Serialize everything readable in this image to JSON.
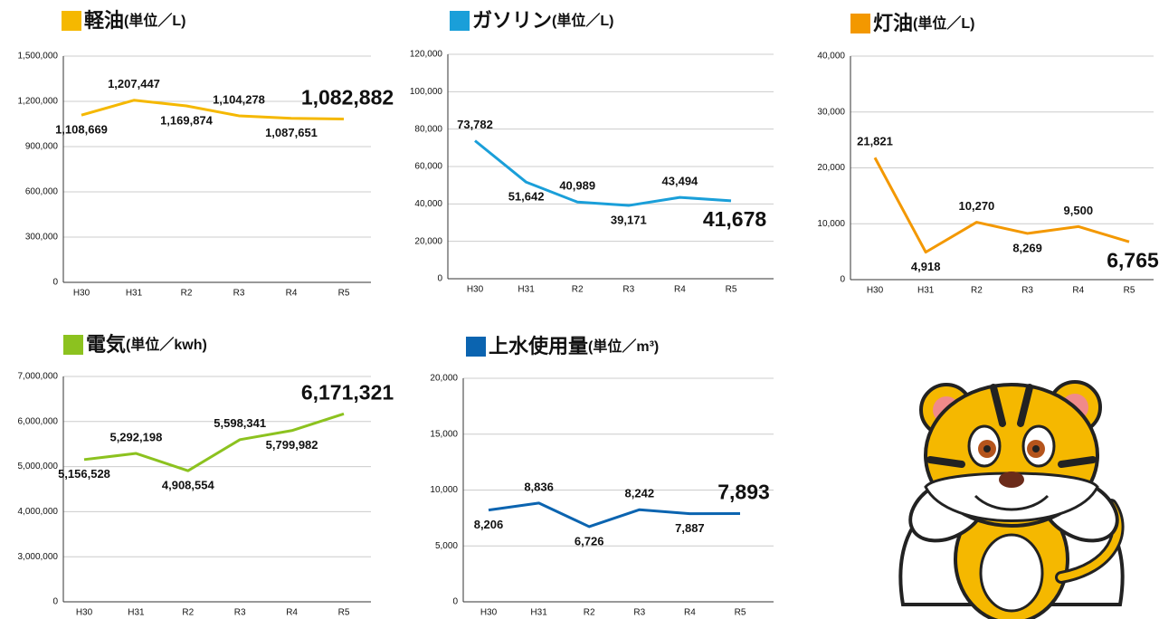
{
  "chart_data": [
    {
      "type": "line",
      "title": "軽油",
      "unit": "(単位／L)",
      "color": "#f5b800",
      "categories": [
        "H30",
        "H31",
        "R2",
        "R3",
        "R4",
        "R5"
      ],
      "values": [
        1108669,
        1207447,
        1169874,
        1104278,
        1087651,
        1082882
      ],
      "value_labels": [
        "1,108,669",
        "1,207,447",
        "1,169,874",
        "1,104,278",
        "1,087,651",
        "1,082,882"
      ],
      "ylim": [
        0,
        1500000
      ],
      "yticks": [
        0,
        {
          "value": 300000,
          "label": "300,000"
        },
        {
          "value": 600000,
          "label": "600,000"
        },
        {
          "value": 900000,
          "label": "900,000"
        },
        {
          "value": 1200000,
          "label": "1,200,000"
        },
        {
          "value": 1500000,
          "label": "1,500,000"
        }
      ],
      "grid": true
    },
    {
      "type": "line",
      "title": "ガソリン",
      "unit": "(単位／L)",
      "color": "#1a9fd9",
      "categories": [
        "H30",
        "H31",
        "R2",
        "R3",
        "R4",
        "R5"
      ],
      "values": [
        73782,
        51642,
        40989,
        39171,
        43494,
        41678
      ],
      "value_labels": [
        "73,782",
        "51,642",
        "40,989",
        "39,171",
        "43,494",
        "41,678"
      ],
      "ylim": [
        0,
        120000
      ],
      "yticks": [
        0,
        {
          "value": 20000,
          "label": "20,000"
        },
        {
          "value": 40000,
          "label": "40,000"
        },
        {
          "value": 60000,
          "label": "60,000"
        },
        {
          "value": 80000,
          "label": "80,000"
        },
        {
          "value": 100000,
          "label": "100,000"
        },
        {
          "value": 120000,
          "label": "120,000"
        }
      ],
      "grid": true
    },
    {
      "type": "line",
      "title": "灯油",
      "unit": "(単位／L)",
      "color": "#f39800",
      "categories": [
        "H30",
        "H31",
        "R2",
        "R3",
        "R4",
        "R5"
      ],
      "values": [
        21821,
        4918,
        10270,
        8269,
        9500,
        6765
      ],
      "value_labels": [
        "21,821",
        "4,918",
        "10,270",
        "8,269",
        "9,500",
        "6,765"
      ],
      "ylim": [
        0,
        40000
      ],
      "yticks": [
        0,
        {
          "value": 10000,
          "label": "10,000"
        },
        {
          "value": 20000,
          "label": "20,000"
        },
        {
          "value": 30000,
          "label": "30,000"
        },
        {
          "value": 40000,
          "label": "40,000"
        }
      ],
      "grid": true
    },
    {
      "type": "line",
      "title": "電気",
      "unit": "(単位／kwh)",
      "color": "#8cc21f",
      "categories": [
        "H30",
        "H31",
        "R2",
        "R3",
        "R4",
        "R5"
      ],
      "values": [
        5156528,
        5292198,
        4908554,
        5598341,
        5799982,
        6171321
      ],
      "value_labels": [
        "5,156,528",
        "5,292,198",
        "4,908,554",
        "5,598,341",
        "5,799,982",
        "6,171,321"
      ],
      "ylim": [
        0,
        7000000
      ],
      "axis_break": [
        0,
        2000000
      ],
      "yticks": [
        0,
        {
          "value": 3000000,
          "label": "3,000,000"
        },
        {
          "value": 4000000,
          "label": "4,000,000"
        },
        {
          "value": 5000000,
          "label": "5,000,000"
        },
        {
          "value": 6000000,
          "label": "6,000,000"
        },
        {
          "value": 7000000,
          "label": "7,000,000"
        }
      ],
      "grid": true
    },
    {
      "type": "line",
      "title": "上水使用量",
      "unit": "(単位／m³)",
      "color": "#0b64b0",
      "categories": [
        "H30",
        "H31",
        "R2",
        "R3",
        "R4",
        "R5"
      ],
      "values": [
        8206,
        8836,
        6726,
        8242,
        7887,
        7893
      ],
      "value_labels": [
        "8,206",
        "8,836",
        "6,726",
        "8,242",
        "7,887",
        "7,893"
      ],
      "ylim": [
        0,
        20000
      ],
      "yticks": [
        0,
        {
          "value": 5000,
          "label": "5,000"
        },
        {
          "value": 10000,
          "label": "10,000"
        },
        {
          "value": 15000,
          "label": "15,000"
        },
        {
          "value": 20000,
          "label": "20,000"
        }
      ],
      "grid": true
    }
  ]
}
